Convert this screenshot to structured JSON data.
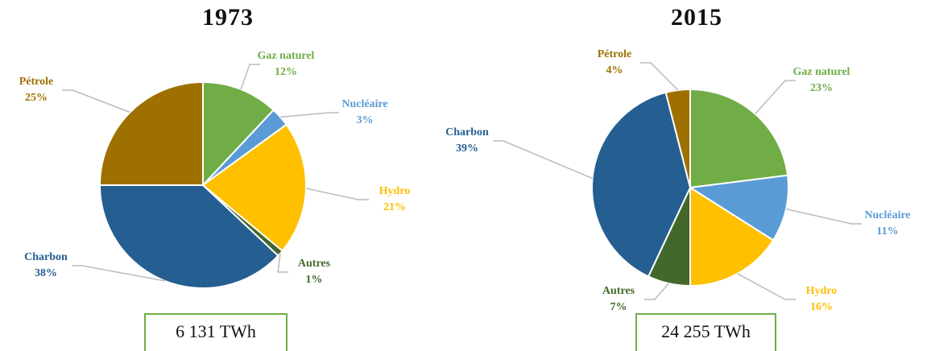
{
  "chart_data": [
    {
      "type": "pie",
      "title": "1973",
      "categories": [
        "Gaz naturel",
        "Nucléaire",
        "Hydro",
        "Autres",
        "Charbon",
        "Pétrole"
      ],
      "values": [
        12,
        3,
        21,
        1,
        38,
        25
      ],
      "value_labels": [
        "12%",
        "3%",
        "21%",
        "1%",
        "38%",
        "25%"
      ],
      "colors": [
        "#70ad47",
        "#5b9bd5",
        "#ffc000",
        "#43682b",
        "#255e91",
        "#9e7000"
      ],
      "total": "6 131 TWh"
    },
    {
      "type": "pie",
      "title": "2015",
      "categories": [
        "Gaz naturel",
        "Nucléaire",
        "Hydro",
        "Autres",
        "Charbon",
        "Pétrole"
      ],
      "values": [
        23,
        11,
        16,
        7,
        39,
        4
      ],
      "value_labels": [
        "23%",
        "11%",
        "16%",
        "7%",
        "39%",
        "4%"
      ],
      "colors": [
        "#70ad47",
        "#5b9bd5",
        "#ffc000",
        "#43682b",
        "#255e91",
        "#9e7000"
      ],
      "total": "24 255 TWh"
    }
  ]
}
